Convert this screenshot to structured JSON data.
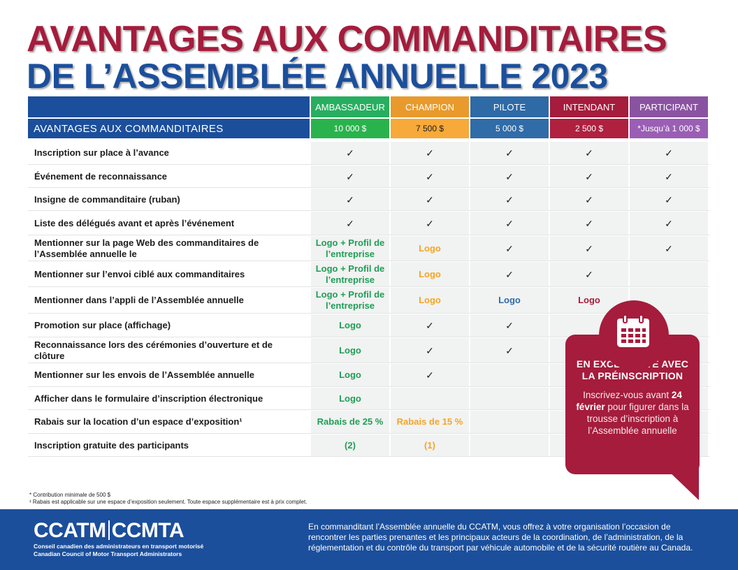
{
  "title": {
    "line1": "AVANTAGES AUX COMMANDITAIRES",
    "line2": "DE L’ASSEMBLÉE ANNUELLE 2023"
  },
  "table": {
    "header_label": "AVANTAGES AUX COMMANDITAIRES",
    "tiers": [
      {
        "name": "AMBASSADEUR",
        "price": "10 000 $",
        "color": "#27ae60",
        "price_color": "#2ab34d"
      },
      {
        "name": "CHAMPION",
        "price": "7 500 $",
        "color": "#e89a2c",
        "price_color": "#f7a939"
      },
      {
        "name": "PILOTE",
        "price": "5 000 $",
        "color": "#2e6aa6",
        "price_color": "#2f6ca8"
      },
      {
        "name": "INTENDANT",
        "price": "2 500 $",
        "color": "#a51c3c",
        "price_color": "#b0203f"
      },
      {
        "name": "PARTICIPANT",
        "price": "*Jusqu’à 1 000 $",
        "color": "#8a53a1",
        "price_color": "#9a5fb4"
      }
    ],
    "rows": [
      {
        "label": "Inscription sur place à l’avance",
        "values": [
          "✓",
          "✓",
          "✓",
          "✓",
          "✓"
        ]
      },
      {
        "label": "Événement de reconnaissance",
        "values": [
          "✓",
          "✓",
          "✓",
          "✓",
          "✓"
        ]
      },
      {
        "label": "Insigne de commanditaire (ruban)",
        "values": [
          "✓",
          "✓",
          "✓",
          "✓",
          "✓"
        ]
      },
      {
        "label": "Liste des délégués avant et après l’événement",
        "values": [
          "✓",
          "✓",
          "✓",
          "✓",
          "✓"
        ]
      },
      {
        "label": "Mentionner sur la page Web des commanditaires de l’Assemblée annuelle le",
        "values": [
          "Logo + Profil de l’entreprise",
          "Logo",
          "✓",
          "✓",
          "✓"
        ]
      },
      {
        "label": "Mentionner sur l’envoi ciblé aux commanditaires",
        "values": [
          "Logo + Profil de l’entreprise",
          "Logo",
          "✓",
          "✓",
          ""
        ]
      },
      {
        "label": "Mentionner dans l’appli de l’Assemblée annuelle",
        "values": [
          "Logo + Profil de l’entreprise",
          "Logo",
          "Logo",
          "Logo",
          ""
        ]
      },
      {
        "label": "Promotion sur place (affichage)",
        "values": [
          "Logo",
          "✓",
          "✓",
          "",
          ""
        ]
      },
      {
        "label": "Reconnaissance lors des cérémonies d’ouverture et de clôture",
        "values": [
          "Logo",
          "✓",
          "✓",
          "",
          ""
        ]
      },
      {
        "label": "Mentionner sur les envois de l’Assemblée annuelle",
        "values": [
          "Logo",
          "✓",
          "",
          "",
          ""
        ]
      },
      {
        "label": "Afficher dans le formulaire d’inscription électronique",
        "values": [
          "Logo",
          "",
          "",
          "",
          ""
        ]
      },
      {
        "label": "Rabais sur la location d’un espace d’exposition¹",
        "values": [
          "Rabais de 25 %",
          "Rabais de 15 %",
          "",
          "",
          ""
        ]
      },
      {
        "label": "Inscription gratuite des participants",
        "values": [
          "(2)",
          "(1)",
          "",
          "",
          ""
        ]
      }
    ]
  },
  "callout": {
    "icon": "calendar-icon",
    "heading_line1": "EN EXCLUSIVITÉ AVEC",
    "heading_line2": "LA PRÉINSCRIPTION",
    "text_before": "Inscrivez-vous avant",
    "text_bold": "24 février",
    "text_after": "pour figurer dans la trousse d’inscription à l’Assemblée annuelle"
  },
  "footnotes": {
    "note1": "* Contribution minimale de 500 $",
    "note2": "¹ Rabais est applicable sur une espace d’exposition seulement. Toute espace supplémentaire est à prix complet."
  },
  "footer": {
    "logo_left": "CCATM",
    "logo_right": "CCMTA",
    "org_fr": "Conseil canadien des administrateurs en transport motorisé",
    "org_en": "Canadian Council of Motor Transport Administrators",
    "description": "En commanditant l’Assemblée annuelle du CCATM, vous offrez à votre organisation l’occasion de rencontrer les parties prenantes et les principaux acteurs de la coordination, de l’administration, de la réglementation et du contrôle du transport par véhicule automobile et de la sécurité routière au Canada."
  }
}
